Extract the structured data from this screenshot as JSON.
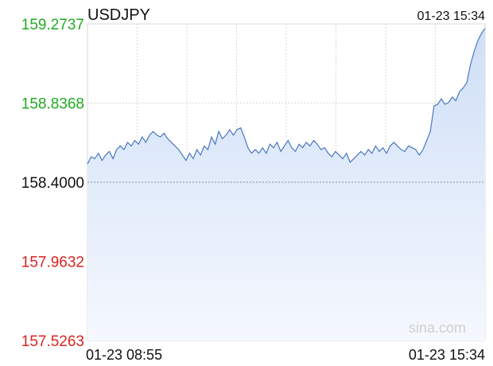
{
  "chart_data": {
    "type": "area",
    "title": "USDJPY",
    "timestamp": "01-23 15:34",
    "x_start_label": "01-23 08:55",
    "x_end_label": "01-23 15:34",
    "watermark": "sina.com",
    "ylim": [
      157.5263,
      159.2737
    ],
    "reference": 158.4,
    "ticks": [
      {
        "label": "159.2737",
        "value": 159.2737,
        "color": "#22aa22"
      },
      {
        "label": "158.8368",
        "value": 158.8368,
        "color": "#22aa22"
      },
      {
        "label": "158.4000",
        "value": 158.4,
        "color": "#111111"
      },
      {
        "label": "157.9632",
        "value": 157.9632,
        "color": "#dd2222"
      },
      {
        "label": "157.5263",
        "value": 157.5263,
        "color": "#dd2222"
      }
    ],
    "grid": true,
    "colors": {
      "line": "#4a78c0",
      "fill_top": "#cfdff7",
      "fill_bottom": "#f5f8fe",
      "grid": "#d9d9d9"
    },
    "series": [
      {
        "values": [
          158.5,
          158.54,
          158.53,
          158.56,
          158.52,
          158.55,
          158.57,
          158.53,
          158.58,
          158.6,
          158.58,
          158.62,
          158.6,
          158.63,
          158.61,
          158.65,
          158.62,
          158.66,
          158.68,
          158.66,
          158.65,
          158.67,
          158.64,
          158.62,
          158.6,
          158.58,
          158.55,
          158.52,
          158.56,
          158.53,
          158.58,
          158.55,
          158.6,
          158.58,
          158.65,
          158.61,
          158.68,
          158.64,
          158.66,
          158.69,
          158.66,
          158.69,
          158.7,
          158.65,
          158.59,
          158.56,
          158.58,
          158.56,
          158.59,
          158.56,
          158.61,
          158.59,
          158.62,
          158.57,
          158.6,
          158.63,
          158.59,
          158.57,
          158.61,
          158.59,
          158.62,
          158.6,
          158.63,
          158.61,
          158.58,
          158.59,
          158.56,
          158.54,
          158.57,
          158.55,
          158.53,
          158.56,
          158.51,
          158.53,
          158.55,
          158.57,
          158.55,
          158.58,
          158.56,
          158.6,
          158.57,
          158.59,
          158.56,
          158.6,
          158.62,
          158.6,
          158.58,
          158.57,
          158.6,
          158.59,
          158.58,
          158.55,
          158.58,
          158.63,
          158.68,
          158.82,
          158.83,
          158.86,
          158.83,
          158.84,
          158.87,
          158.85,
          158.9,
          158.92,
          158.95,
          159.05,
          159.12,
          159.18,
          159.22,
          159.25
        ]
      }
    ]
  }
}
